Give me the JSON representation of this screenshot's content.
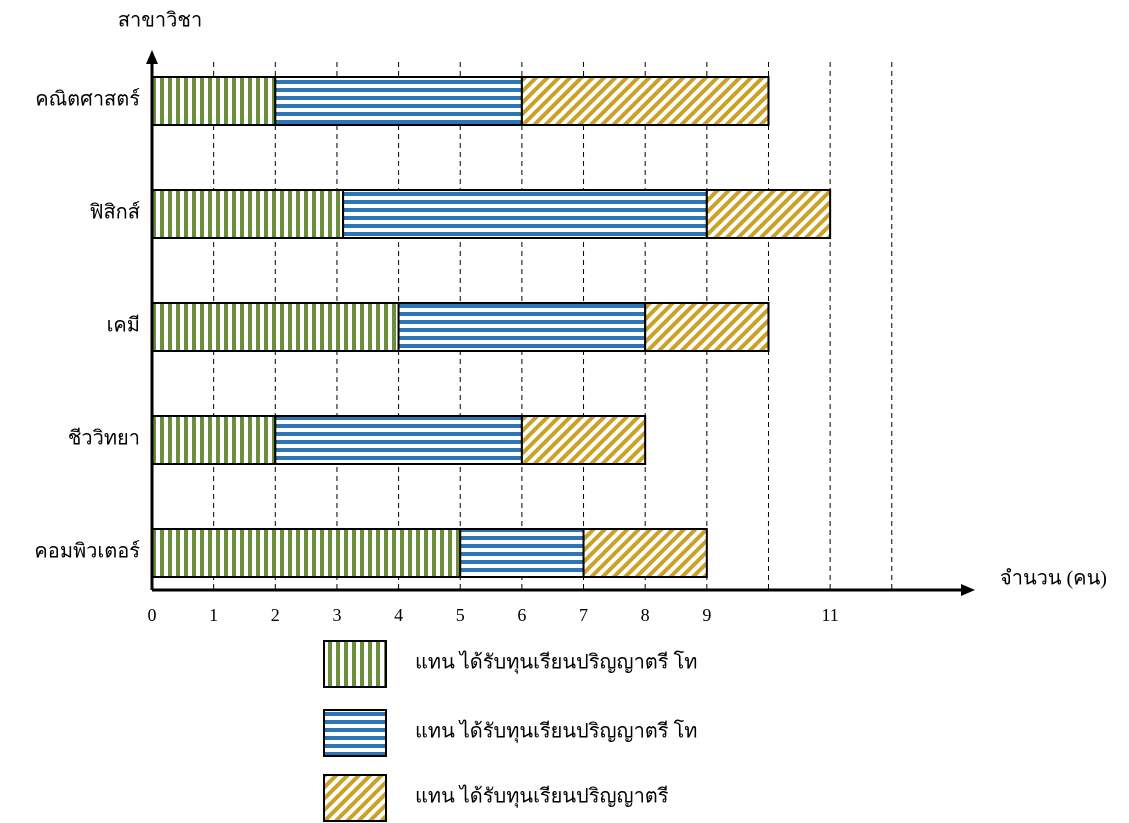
{
  "chart_data": {
    "type": "stacked_barh",
    "y_label": "สาขาวิชา",
    "x_label": "จำนวน (คน)",
    "categories": [
      "คณิตศาสตร์",
      "ฟิสิกส์",
      "เคมี",
      "ชีววิทยา",
      "คอมพิวเตอร์"
    ],
    "series": [
      {
        "name": "แทน ได้รับทุนเรียนปริญญาตรี โท",
        "color": "#6b8e3a",
        "pattern": "vertical",
        "values": [
          2,
          3.1,
          4,
          2,
          5
        ]
      },
      {
        "name": "แทน ได้รับทุนเรียนปริญญาตรี โท",
        "color": "#2e75b6",
        "pattern": "horizontal",
        "values": [
          4,
          5.9,
          4,
          4,
          2
        ]
      },
      {
        "name": "แทน ได้รับทุนเรียนปริญญาตรี",
        "color": "#c9a227",
        "pattern": "diagonal",
        "values": [
          4,
          2,
          2,
          2,
          2
        ]
      }
    ],
    "xlim": [
      0,
      13.35
    ],
    "xticks": [
      0,
      1,
      2,
      3,
      4,
      5,
      6,
      7,
      8,
      9,
      11
    ],
    "xgrid": [
      1,
      2,
      3,
      4,
      5,
      6,
      7,
      8,
      9,
      10,
      11,
      12
    ]
  }
}
